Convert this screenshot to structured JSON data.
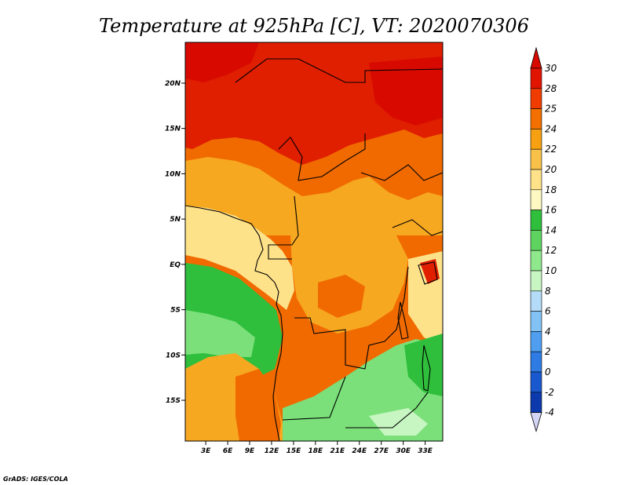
{
  "title": "Temperature at 925hPa [C], VT: 2020070306",
  "credit": "GrADS: IGES/COLA",
  "map": {
    "lat_ticks": [
      {
        "value": 20,
        "label": "20N"
      },
      {
        "value": 15,
        "label": "15N"
      },
      {
        "value": 10,
        "label": "10N"
      },
      {
        "value": 5,
        "label": "5N"
      },
      {
        "value": 0,
        "label": "EQ"
      },
      {
        "value": -5,
        "label": "5S"
      },
      {
        "value": -10,
        "label": "10S"
      },
      {
        "value": -15,
        "label": "15S"
      }
    ],
    "lon_ticks": [
      {
        "value": 3,
        "label": "3E"
      },
      {
        "value": 6,
        "label": "6E"
      },
      {
        "value": 9,
        "label": "9E"
      },
      {
        "value": 12,
        "label": "12E"
      },
      {
        "value": 15,
        "label": "15E"
      },
      {
        "value": 18,
        "label": "18E"
      },
      {
        "value": 21,
        "label": "21E"
      },
      {
        "value": 24,
        "label": "24E"
      },
      {
        "value": 27,
        "label": "27E"
      },
      {
        "value": 30,
        "label": "30E"
      },
      {
        "value": 33,
        "label": "33E"
      }
    ],
    "lon_range": [
      0.2,
      35.4
    ],
    "lat_range": [
      -19.5,
      24.5
    ]
  },
  "colorbar": {
    "labels": [
      "30",
      "28",
      "25",
      "24",
      "22",
      "20",
      "18",
      "16",
      "14",
      "12",
      "10",
      "8",
      "6",
      "4",
      "2",
      "0",
      "-2",
      "-4"
    ],
    "colors": [
      "#e11400",
      "#f03c00",
      "#f36f00",
      "#f6a012",
      "#f8c24a",
      "#fde28a",
      "#fdf8c2",
      "#2fbf3c",
      "#5fd35f",
      "#90e88c",
      "#c7f6c2",
      "#b4dcf9",
      "#82c2f5",
      "#4f9ef0",
      "#2d7be3",
      "#1a58cf",
      "#0c3aac",
      "#081a72"
    ],
    "top_cap_color": "#d80a00",
    "bottom_cap_color": "#d4d4f5"
  },
  "colors": {
    "hot": "#e01e00",
    "orange": "#f06a00",
    "amber": "#f7a821",
    "cream": "#fde28a",
    "green": "#2fbf3c",
    "lightgreen": "#7be07a",
    "coastline": "#000000"
  }
}
